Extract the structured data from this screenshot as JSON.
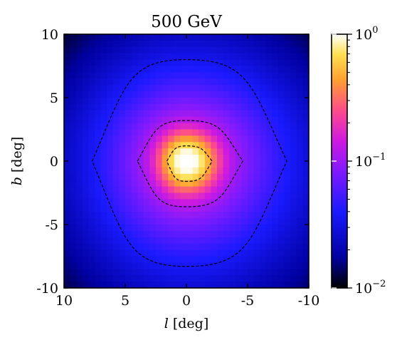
{
  "chart_data": {
    "type": "heatmap",
    "title": "500 GeV",
    "xlabel": "l [deg]",
    "ylabel": "b [deg]",
    "xlim": [
      10,
      -10
    ],
    "ylim": [
      -10,
      10
    ],
    "x_ticks": [
      "10",
      "5",
      "0",
      "-5",
      "-10"
    ],
    "x_tick_values": [
      10,
      5,
      0,
      -5,
      -10
    ],
    "y_ticks": [
      "10",
      "5",
      "0",
      "-5",
      "-10"
    ],
    "y_tick_values": [
      10,
      5,
      0,
      -5,
      -10
    ],
    "colormap": "gnuplot2",
    "color_scale": "log",
    "color_range": [
      0.01,
      1
    ],
    "colorbar_ticks": [
      {
        "value": 1,
        "label": "10",
        "exp": "0"
      },
      {
        "value": 0.1,
        "label": "10",
        "exp": "−1"
      },
      {
        "value": 0.01,
        "label": "10",
        "exp": "−2"
      }
    ],
    "peak_position": {
      "l": 0,
      "b": 0
    },
    "contours": [
      {
        "name": "outer",
        "l_extent": [
          7.7,
          -8.2
        ],
        "b_extent": [
          -8.3,
          8.0
        ]
      },
      {
        "name": "middle",
        "l_extent": [
          4.0,
          -4.6
        ],
        "b_extent": [
          -3.6,
          3.2
        ]
      },
      {
        "name": "inner",
        "l_extent": [
          1.6,
          -2.1
        ],
        "b_extent": [
          -1.6,
          1.2
        ]
      }
    ]
  }
}
